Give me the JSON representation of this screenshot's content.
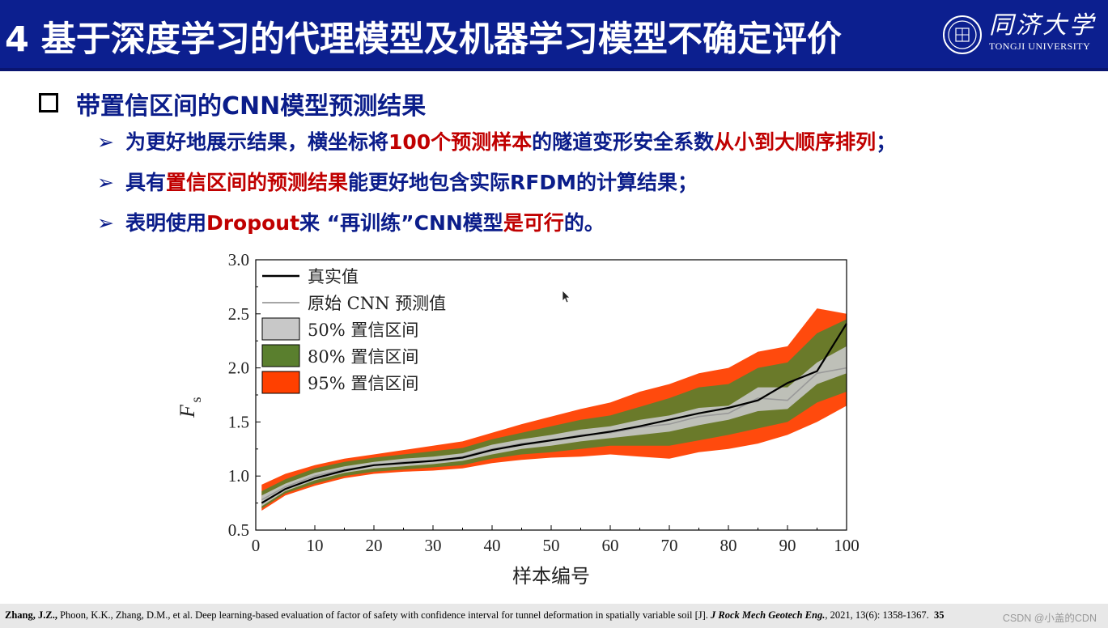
{
  "header": {
    "title": "4 基于深度学习的代理模型及机器学习模型不确定评价",
    "logo_cn": "同济大学",
    "logo_en": "TONGJI UNIVERSITY"
  },
  "main_bullet": "带置信区间的CNN模型预测结果",
  "bullets": [
    {
      "parts": [
        "为更好地展示结果，横坐标将",
        "100个预测样本",
        "的隧道变形安全系数",
        "从小到大顺序排列",
        "；"
      ]
    },
    {
      "parts": [
        "具有",
        "置信区间的预测结果",
        "能更好地包含实际RFDM的计算结果；"
      ]
    },
    {
      "parts": [
        "表明使用",
        "Dropout",
        "来 “再训练”CNN模型",
        "是可行",
        "的。"
      ]
    }
  ],
  "chart_data": {
    "type": "area",
    "xlabel": "样本编号",
    "ylabel": "F",
    "ylabel_sub": "s",
    "xlim": [
      0,
      100
    ],
    "ylim": [
      0.5,
      3.0
    ],
    "xticks": [
      "0",
      "10",
      "20",
      "30",
      "40",
      "50",
      "60",
      "70",
      "80",
      "90",
      "100"
    ],
    "yticks": [
      "0.5",
      "1.0",
      "1.5",
      "2.0",
      "2.5",
      "3.0"
    ],
    "legend_position": "top-left",
    "legend": [
      {
        "label": "真实值",
        "kind": "line",
        "color": "#000000"
      },
      {
        "label": "原始 CNN 预测值",
        "kind": "line",
        "color": "#999999"
      },
      {
        "label": "50% 置信区间",
        "kind": "patch",
        "color": "#c8c8c8"
      },
      {
        "label": "80% 置信区间",
        "kind": "patch",
        "color": "#5a7f2e"
      },
      {
        "label": "95% 置信区间",
        "kind": "patch",
        "color": "#ff4000"
      }
    ],
    "x": [
      1,
      5,
      10,
      15,
      20,
      25,
      30,
      35,
      40,
      45,
      50,
      55,
      60,
      65,
      70,
      75,
      80,
      85,
      90,
      95,
      100
    ],
    "series": [
      {
        "name": "真实值",
        "values": [
          0.75,
          0.88,
          0.98,
          1.05,
          1.1,
          1.12,
          1.14,
          1.17,
          1.24,
          1.29,
          1.33,
          1.37,
          1.41,
          1.46,
          1.52,
          1.58,
          1.63,
          1.7,
          1.86,
          1.97,
          2.41
        ]
      },
      {
        "name": "原始 CNN 预测值",
        "values": [
          0.78,
          0.9,
          1.0,
          1.06,
          1.1,
          1.13,
          1.14,
          1.18,
          1.25,
          1.3,
          1.33,
          1.38,
          1.4,
          1.45,
          1.48,
          1.55,
          1.58,
          1.72,
          1.7,
          1.95,
          2.0
        ]
      },
      {
        "name": "50% 置信区间",
        "lower": [
          0.72,
          0.86,
          0.96,
          1.03,
          1.07,
          1.09,
          1.11,
          1.14,
          1.2,
          1.25,
          1.28,
          1.32,
          1.35,
          1.38,
          1.41,
          1.47,
          1.52,
          1.6,
          1.62,
          1.85,
          1.95
        ],
        "upper": [
          0.82,
          0.93,
          1.03,
          1.09,
          1.13,
          1.16,
          1.18,
          1.21,
          1.29,
          1.34,
          1.38,
          1.43,
          1.46,
          1.52,
          1.56,
          1.63,
          1.65,
          1.82,
          1.82,
          2.05,
          2.2
        ]
      },
      {
        "name": "80% 置信区间",
        "lower": [
          0.7,
          0.84,
          0.93,
          1.0,
          1.04,
          1.06,
          1.08,
          1.1,
          1.16,
          1.2,
          1.22,
          1.25,
          1.28,
          1.28,
          1.28,
          1.33,
          1.38,
          1.44,
          1.5,
          1.68,
          1.78
        ],
        "upper": [
          0.86,
          0.97,
          1.07,
          1.13,
          1.17,
          1.2,
          1.23,
          1.26,
          1.34,
          1.4,
          1.46,
          1.52,
          1.56,
          1.64,
          1.72,
          1.82,
          1.85,
          2.0,
          2.05,
          2.32,
          2.45
        ]
      },
      {
        "name": "95% 置信区间",
        "lower": [
          0.68,
          0.82,
          0.91,
          0.98,
          1.02,
          1.04,
          1.05,
          1.07,
          1.12,
          1.15,
          1.17,
          1.18,
          1.2,
          1.18,
          1.16,
          1.22,
          1.25,
          1.3,
          1.38,
          1.5,
          1.65
        ],
        "upper": [
          0.92,
          1.02,
          1.1,
          1.16,
          1.2,
          1.24,
          1.28,
          1.32,
          1.4,
          1.48,
          1.55,
          1.62,
          1.68,
          1.78,
          1.85,
          1.95,
          2.0,
          2.15,
          2.2,
          2.55,
          2.5
        ]
      }
    ]
  },
  "footer": {
    "authors_bold": "Zhang, J.Z.,",
    "citation": " Phoon, K.K., Zhang, D.M., et al. Deep learning-based evaluation of factor of safety with confidence interval for tunnel deformation in spatially variable soil [J]. ",
    "journal": "J Rock Mech Geotech Eng.",
    "tail": ", 2021, 13(6): 1358-1367.",
    "page": "35",
    "watermark": "CSDN @小盖的CDN"
  },
  "colors": {
    "header_bg": "#0c1f8f",
    "text_blue": "#0b1d8a",
    "highlight_red": "#c00000"
  }
}
